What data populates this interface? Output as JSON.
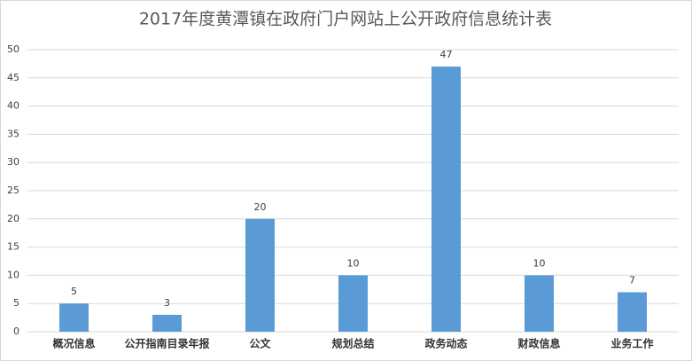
{
  "chart_data": {
    "type": "bar",
    "title": "2017年度黄潭镇在政府门户网站上公开政府信息统计表",
    "categories": [
      "概况信息",
      "公开指南目录年报",
      "公文",
      "规划总结",
      "政务动态",
      "财政信息",
      "业务工作"
    ],
    "values": [
      5,
      3,
      20,
      10,
      47,
      10,
      7
    ],
    "color": "#5b9bd5",
    "ylim": [
      0,
      50
    ],
    "yticks": [
      0,
      5,
      10,
      15,
      20,
      25,
      30,
      35,
      40,
      45,
      50
    ],
    "grid": true
  }
}
